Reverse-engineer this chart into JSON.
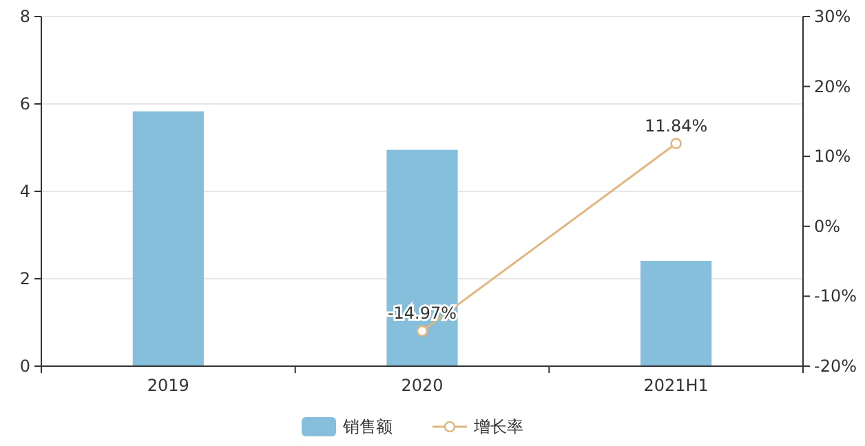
{
  "chart_data": {
    "type": "bar",
    "categories": [
      "2019",
      "2020",
      "2021H1"
    ],
    "series": [
      {
        "name": "销售额",
        "color": "#86bfdc",
        "values": [
          5.83,
          4.95,
          2.41
        ]
      },
      {
        "name": "增长率",
        "type": "line",
        "axis": "y2",
        "color": "#e2b67f",
        "values": [
          null,
          -14.97,
          11.84
        ],
        "value_labels": [
          null,
          "-14.97%",
          "11.84%"
        ],
        "marker": "circle"
      }
    ],
    "ylim": [
      0,
      8
    ],
    "yticks": [
      0,
      2,
      4,
      6,
      8
    ],
    "y2lim": [
      -20,
      30
    ],
    "y2ticks": [
      {
        "value": -20,
        "label": "-20%"
      },
      {
        "value": -10,
        "label": "-10%"
      },
      {
        "value": 0,
        "label": "0%"
      },
      {
        "value": 10,
        "label": "10%"
      },
      {
        "value": 20,
        "label": "20%"
      },
      {
        "value": 30,
        "label": "30%"
      }
    ],
    "grid": "y",
    "legend": "bottom"
  }
}
